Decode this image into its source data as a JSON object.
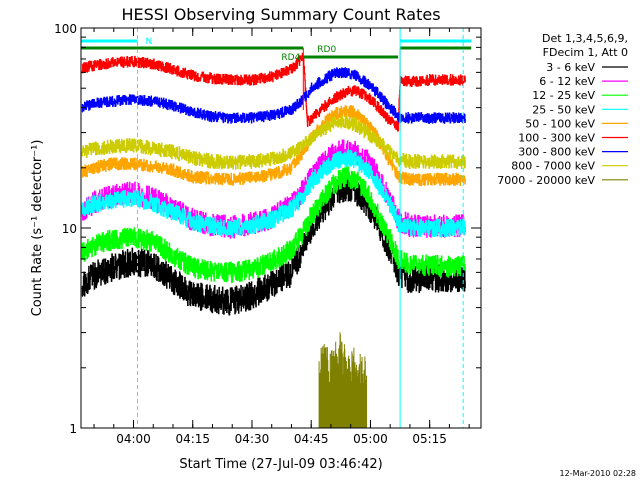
{
  "chart_data": {
    "type": "line",
    "title": "HESSI Observing Summary Count Rates",
    "xlabel": "Start Time (27-Jul-09 03:46:42)",
    "ylabel": "Count Rate (s⁻¹ detector⁻¹)",
    "y_scale": "log",
    "ylim": [
      1,
      100
    ],
    "xlim": [
      "03:46:42",
      "05:28:00"
    ],
    "x_ticks": [
      "04:00",
      "04:15",
      "04:30",
      "04:45",
      "05:00",
      "05:15"
    ],
    "y_ticks": [
      "1",
      "10",
      "100"
    ],
    "timestamp": "12-Mar-2010 02:28",
    "legend": {
      "placement": "right",
      "header": [
        "Det 1,3,4,5,6,9,",
        "FDecim 1, Att 0"
      ]
    },
    "flags": [
      {
        "name": "N",
        "color": "#00ffff",
        "segments": [
          [
            "03:46:42",
            "04:01:00"
          ],
          [
            "05:07:30",
            "05:25:30"
          ]
        ]
      },
      {
        "name": "RD4",
        "color": "#008000",
        "segments": [
          [
            "03:46:42",
            "04:43:00"
          ]
        ]
      },
      {
        "name": "RD0",
        "color": "#008000",
        "segments": [
          [
            "04:43:00",
            "05:07:00"
          ],
          [
            "05:07:30",
            "05:25:30"
          ]
        ]
      }
    ],
    "night_lines": [
      {
        "time": "03:46:42",
        "style": "solid"
      },
      {
        "time": "04:01:00",
        "style": "dashed"
      },
      {
        "time": "05:07:30",
        "style": "solid"
      },
      {
        "time": "05:23:30",
        "style": "dashed"
      }
    ],
    "series": [
      {
        "name": "3 - 6 keV",
        "color": "#000000",
        "x": [
          "03:47",
          "03:50",
          "03:55",
          "04:00",
          "04:05",
          "04:10",
          "04:15",
          "04:20",
          "04:25",
          "04:30",
          "04:35",
          "04:40",
          "04:43",
          "04:45",
          "04:48",
          "04:50",
          "04:52",
          "04:54",
          "04:56",
          "04:58",
          "05:00",
          "05:02",
          "05:04",
          "05:06",
          "05:07",
          "05:10",
          "05:15",
          "05:20",
          "05:24"
        ],
        "values": [
          5.2,
          5.8,
          6.4,
          6.8,
          6.5,
          5.5,
          4.6,
          4.4,
          4.3,
          4.6,
          5.2,
          6.0,
          8.0,
          10,
          12.5,
          14,
          15.5,
          16,
          15.5,
          14,
          12.5,
          10.5,
          8.5,
          7,
          6,
          5.5,
          5.6,
          5.5,
          5.6
        ]
      },
      {
        "name": "6 - 12 keV",
        "color": "#ff00ff",
        "x": [
          "03:47",
          "03:50",
          "03:55",
          "04:00",
          "04:05",
          "04:10",
          "04:15",
          "04:20",
          "04:25",
          "04:30",
          "04:35",
          "04:40",
          "04:43",
          "04:45",
          "04:48",
          "04:50",
          "04:52",
          "04:54",
          "04:56",
          "04:58",
          "05:00",
          "05:02",
          "05:04",
          "05:06",
          "05:07",
          "05:10",
          "05:15",
          "05:20",
          "05:24"
        ],
        "values": [
          12,
          13.5,
          14.5,
          15,
          14,
          12.5,
          11,
          10.3,
          10.1,
          10.5,
          11.3,
          13,
          15.5,
          18,
          21,
          23,
          24,
          24.5,
          24,
          22.5,
          21,
          18,
          15,
          12.5,
          11,
          10.3,
          10.2,
          10.2,
          10.3
        ]
      },
      {
        "name": "12 - 25 keV",
        "color": "#00ff00",
        "x": [
          "03:47",
          "03:50",
          "03:55",
          "04:00",
          "04:05",
          "04:10",
          "04:15",
          "04:20",
          "04:25",
          "04:30",
          "04:35",
          "04:40",
          "04:43",
          "04:45",
          "04:48",
          "04:50",
          "04:52",
          "04:54",
          "04:56",
          "04:58",
          "05:00",
          "05:02",
          "05:04",
          "05:06",
          "05:07",
          "05:10",
          "05:15",
          "05:20",
          "05:24"
        ],
        "values": [
          7.5,
          8.2,
          8.8,
          9.0,
          8.5,
          7.3,
          6.3,
          6.1,
          6.0,
          6.2,
          6.8,
          7.8,
          9.5,
          11.5,
          14,
          16,
          17.5,
          18,
          17.5,
          16,
          14,
          11.5,
          9.5,
          8,
          7,
          6.5,
          6.5,
          6.4,
          6.5
        ]
      },
      {
        "name": "25 - 50 keV",
        "color": "#00ffff",
        "x": [
          "03:47",
          "03:50",
          "03:55",
          "04:00",
          "04:05",
          "04:10",
          "04:15",
          "04:20",
          "04:25",
          "04:30",
          "04:35",
          "04:40",
          "04:43",
          "04:45",
          "04:48",
          "04:50",
          "04:52",
          "04:54",
          "04:56",
          "04:58",
          "05:00",
          "05:02",
          "05:04",
          "05:06",
          "05:07",
          "05:10",
          "05:15",
          "05:20",
          "05:24"
        ],
        "values": [
          12.5,
          13.3,
          13.8,
          14,
          13.2,
          12,
          10.7,
          10.2,
          10.0,
          10.3,
          11,
          12.5,
          14.5,
          17,
          19.5,
          21,
          22,
          22.5,
          22,
          20.5,
          19,
          16.5,
          14,
          12,
          10.5,
          10.0,
          10.0,
          10.0,
          10.0
        ]
      },
      {
        "name": "50 - 100 keV",
        "color": "#ffa500",
        "x": [
          "03:47",
          "03:50",
          "03:55",
          "04:00",
          "04:05",
          "04:10",
          "04:15",
          "04:20",
          "04:25",
          "04:30",
          "04:35",
          "04:40",
          "04:43",
          "04:45",
          "04:48",
          "04:50",
          "04:52",
          "04:54",
          "04:56",
          "04:58",
          "05:00",
          "05:02",
          "05:04",
          "05:06",
          "05:07",
          "05:10",
          "05:15",
          "05:20",
          "05:24"
        ],
        "values": [
          19,
          20,
          21,
          21,
          20.3,
          19.5,
          18,
          17.7,
          17.5,
          17.8,
          18.5,
          20,
          24,
          28,
          33,
          36,
          38,
          38.5,
          38,
          35,
          32,
          28,
          23,
          20,
          18,
          17.5,
          17.5,
          17.5,
          17.5
        ]
      },
      {
        "name": "100 - 300 keV",
        "color": "#ff0000",
        "x": [
          "03:47",
          "03:50",
          "03:55",
          "04:00",
          "04:05",
          "04:10",
          "04:15",
          "04:20",
          "04:25",
          "04:30",
          "04:35",
          "04:40",
          "04:43",
          "04:44",
          "04:45",
          "04:48",
          "04:50",
          "04:52",
          "04:54",
          "04:56",
          "04:58",
          "05:00",
          "05:02",
          "05:04",
          "05:06",
          "05:07",
          "05:07.5",
          "05:10",
          "05:15",
          "05:20",
          "05:24"
        ],
        "values": [
          63,
          65,
          67,
          68,
          66,
          62,
          58,
          56,
          55,
          55,
          57,
          62,
          72,
          34,
          35,
          40,
          43,
          46,
          48,
          48.5,
          47,
          44,
          40,
          36,
          33,
          32,
          55,
          54,
          55,
          55,
          55
        ]
      },
      {
        "name": "300 - 800 keV",
        "color": "#0000ff",
        "x": [
          "03:47",
          "03:50",
          "03:55",
          "04:00",
          "04:05",
          "04:10",
          "04:15",
          "04:20",
          "04:25",
          "04:30",
          "04:35",
          "04:40",
          "04:43",
          "04:45",
          "04:48",
          "04:50",
          "04:52",
          "04:54",
          "04:56",
          "04:58",
          "05:00",
          "05:02",
          "05:04",
          "05:06",
          "05:07",
          "05:10",
          "05:15",
          "05:20",
          "05:24"
        ],
        "values": [
          40,
          42,
          43,
          44,
          43,
          41,
          38,
          36,
          35.5,
          35.5,
          36.5,
          39,
          44,
          50,
          55,
          58,
          60,
          60,
          58,
          55,
          51,
          47,
          42,
          38,
          36,
          35.5,
          35.5,
          35.5,
          35.5
        ]
      },
      {
        "name": "800 - 7000 keV",
        "color": "#cccc00",
        "x": [
          "03:47",
          "03:50",
          "03:55",
          "04:00",
          "04:05",
          "04:10",
          "04:15",
          "04:20",
          "04:25",
          "04:30",
          "04:35",
          "04:40",
          "04:43",
          "04:45",
          "04:48",
          "04:50",
          "04:52",
          "04:54",
          "04:56",
          "04:58",
          "05:00",
          "05:02",
          "05:04",
          "05:06",
          "05:07",
          "05:10",
          "05:15",
          "05:20",
          "05:24"
        ],
        "values": [
          24,
          25,
          25.5,
          26,
          25,
          24,
          22.5,
          21.5,
          21.3,
          21.5,
          22,
          23.5,
          26,
          28,
          31,
          33,
          34,
          34,
          33,
          31,
          29,
          27,
          25,
          23,
          22,
          21.5,
          21.5,
          21.5,
          21.5
        ]
      },
      {
        "name": "7000 - 20000 keV",
        "color": "#808000",
        "x": [
          "04:47",
          "04:48",
          "04:49",
          "04:50",
          "04:51",
          "04:52",
          "04:53",
          "04:54",
          "04:55",
          "04:56",
          "04:57",
          "04:58",
          "04:59"
        ],
        "values": [
          1.9,
          2.1,
          2.0,
          1.9,
          2.2,
          2.6,
          2.1,
          2.0,
          1.9,
          2.0,
          1.8,
          1.9,
          1.8
        ]
      }
    ]
  }
}
